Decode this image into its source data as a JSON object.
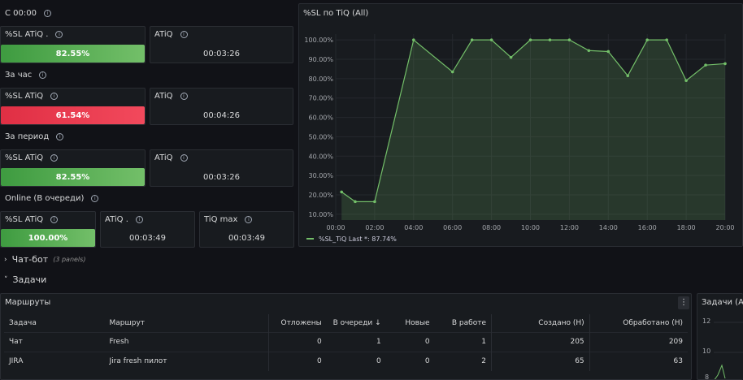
{
  "top_left": {
    "rows": [
      {
        "title": "С 00:00",
        "panels": [
          {
            "title": "%SL ATiQ .",
            "value": "82.55%",
            "color": "green"
          },
          {
            "title": "ATiQ",
            "value": "00:03:26"
          }
        ]
      },
      {
        "title": "За час",
        "panels": [
          {
            "title": "%SL ATiQ",
            "value": "61.54%",
            "color": "red"
          },
          {
            "title": "ATiQ",
            "value": "00:04:26"
          }
        ]
      },
      {
        "title": "За период",
        "panels": [
          {
            "title": "%SL ATiQ",
            "value": "82.55%",
            "color": "green"
          },
          {
            "title": "ATiQ",
            "value": "00:03:26"
          }
        ]
      },
      {
        "title": "Online (В очереди)",
        "panels": [
          {
            "title": "%SL ATiQ",
            "value": "100.00%",
            "color": "green"
          },
          {
            "title": "ATiQ .",
            "value": "00:03:49"
          },
          {
            "title": "TiQ max",
            "value": "00:03:49"
          }
        ]
      }
    ]
  },
  "chart_panel": {
    "title": "%SL по TiQ (All)",
    "legend": "%SL_TiQ  Last *: 87.74%"
  },
  "chart_data": {
    "type": "area",
    "title": "%SL по TiQ (All)",
    "yticks": [
      "10.00%",
      "20.00%",
      "30.00%",
      "40.00%",
      "50.00%",
      "60.00%",
      "70.00%",
      "80.00%",
      "90.00%",
      "100.00%"
    ],
    "xticks": [
      "00:00",
      "02:00",
      "04:00",
      "06:00",
      "08:00",
      "10:00",
      "12:00",
      "14:00",
      "16:00",
      "18:00",
      "20:00"
    ],
    "ylim": [
      7,
      103
    ],
    "xlim": [
      0,
      20
    ],
    "series": [
      {
        "name": "%SL_TiQ",
        "color": "#73bf69",
        "x": [
          0.3,
          1,
          2,
          4,
          6,
          7,
          8,
          9,
          10,
          11,
          12,
          13,
          14,
          15,
          16,
          17,
          18,
          19,
          20
        ],
        "values": [
          21.5,
          16.5,
          16.5,
          100,
          83.5,
          100,
          100,
          91,
          100,
          100,
          100,
          94.5,
          94,
          81.5,
          100,
          100,
          79,
          87,
          87.74
        ]
      }
    ]
  },
  "sections": {
    "chatbot": {
      "label": "Чат-бот",
      "sub": "(3 panels)"
    },
    "tasks": {
      "label": "Задачи"
    }
  },
  "routes_panel": {
    "title": "Маршруты",
    "menu_icon": "⋮",
    "columns": [
      "Задача",
      "Маршрут",
      "Отложены",
      "В очереди",
      "Новые",
      "В работе",
      "Создано (Н)",
      "Обработано (Н)"
    ],
    "sort_indicator": "↓",
    "rows": [
      [
        "Чат",
        "Fresh",
        "0",
        "1",
        "0",
        "1",
        "205",
        "209"
      ],
      [
        "JIRA",
        "Jira fresh пилот",
        "0",
        "0",
        "0",
        "2",
        "65",
        "63"
      ]
    ]
  },
  "tasks_all_panel": {
    "title": "Задачи (All)",
    "yticks": [
      "12",
      "10",
      "8"
    ]
  }
}
